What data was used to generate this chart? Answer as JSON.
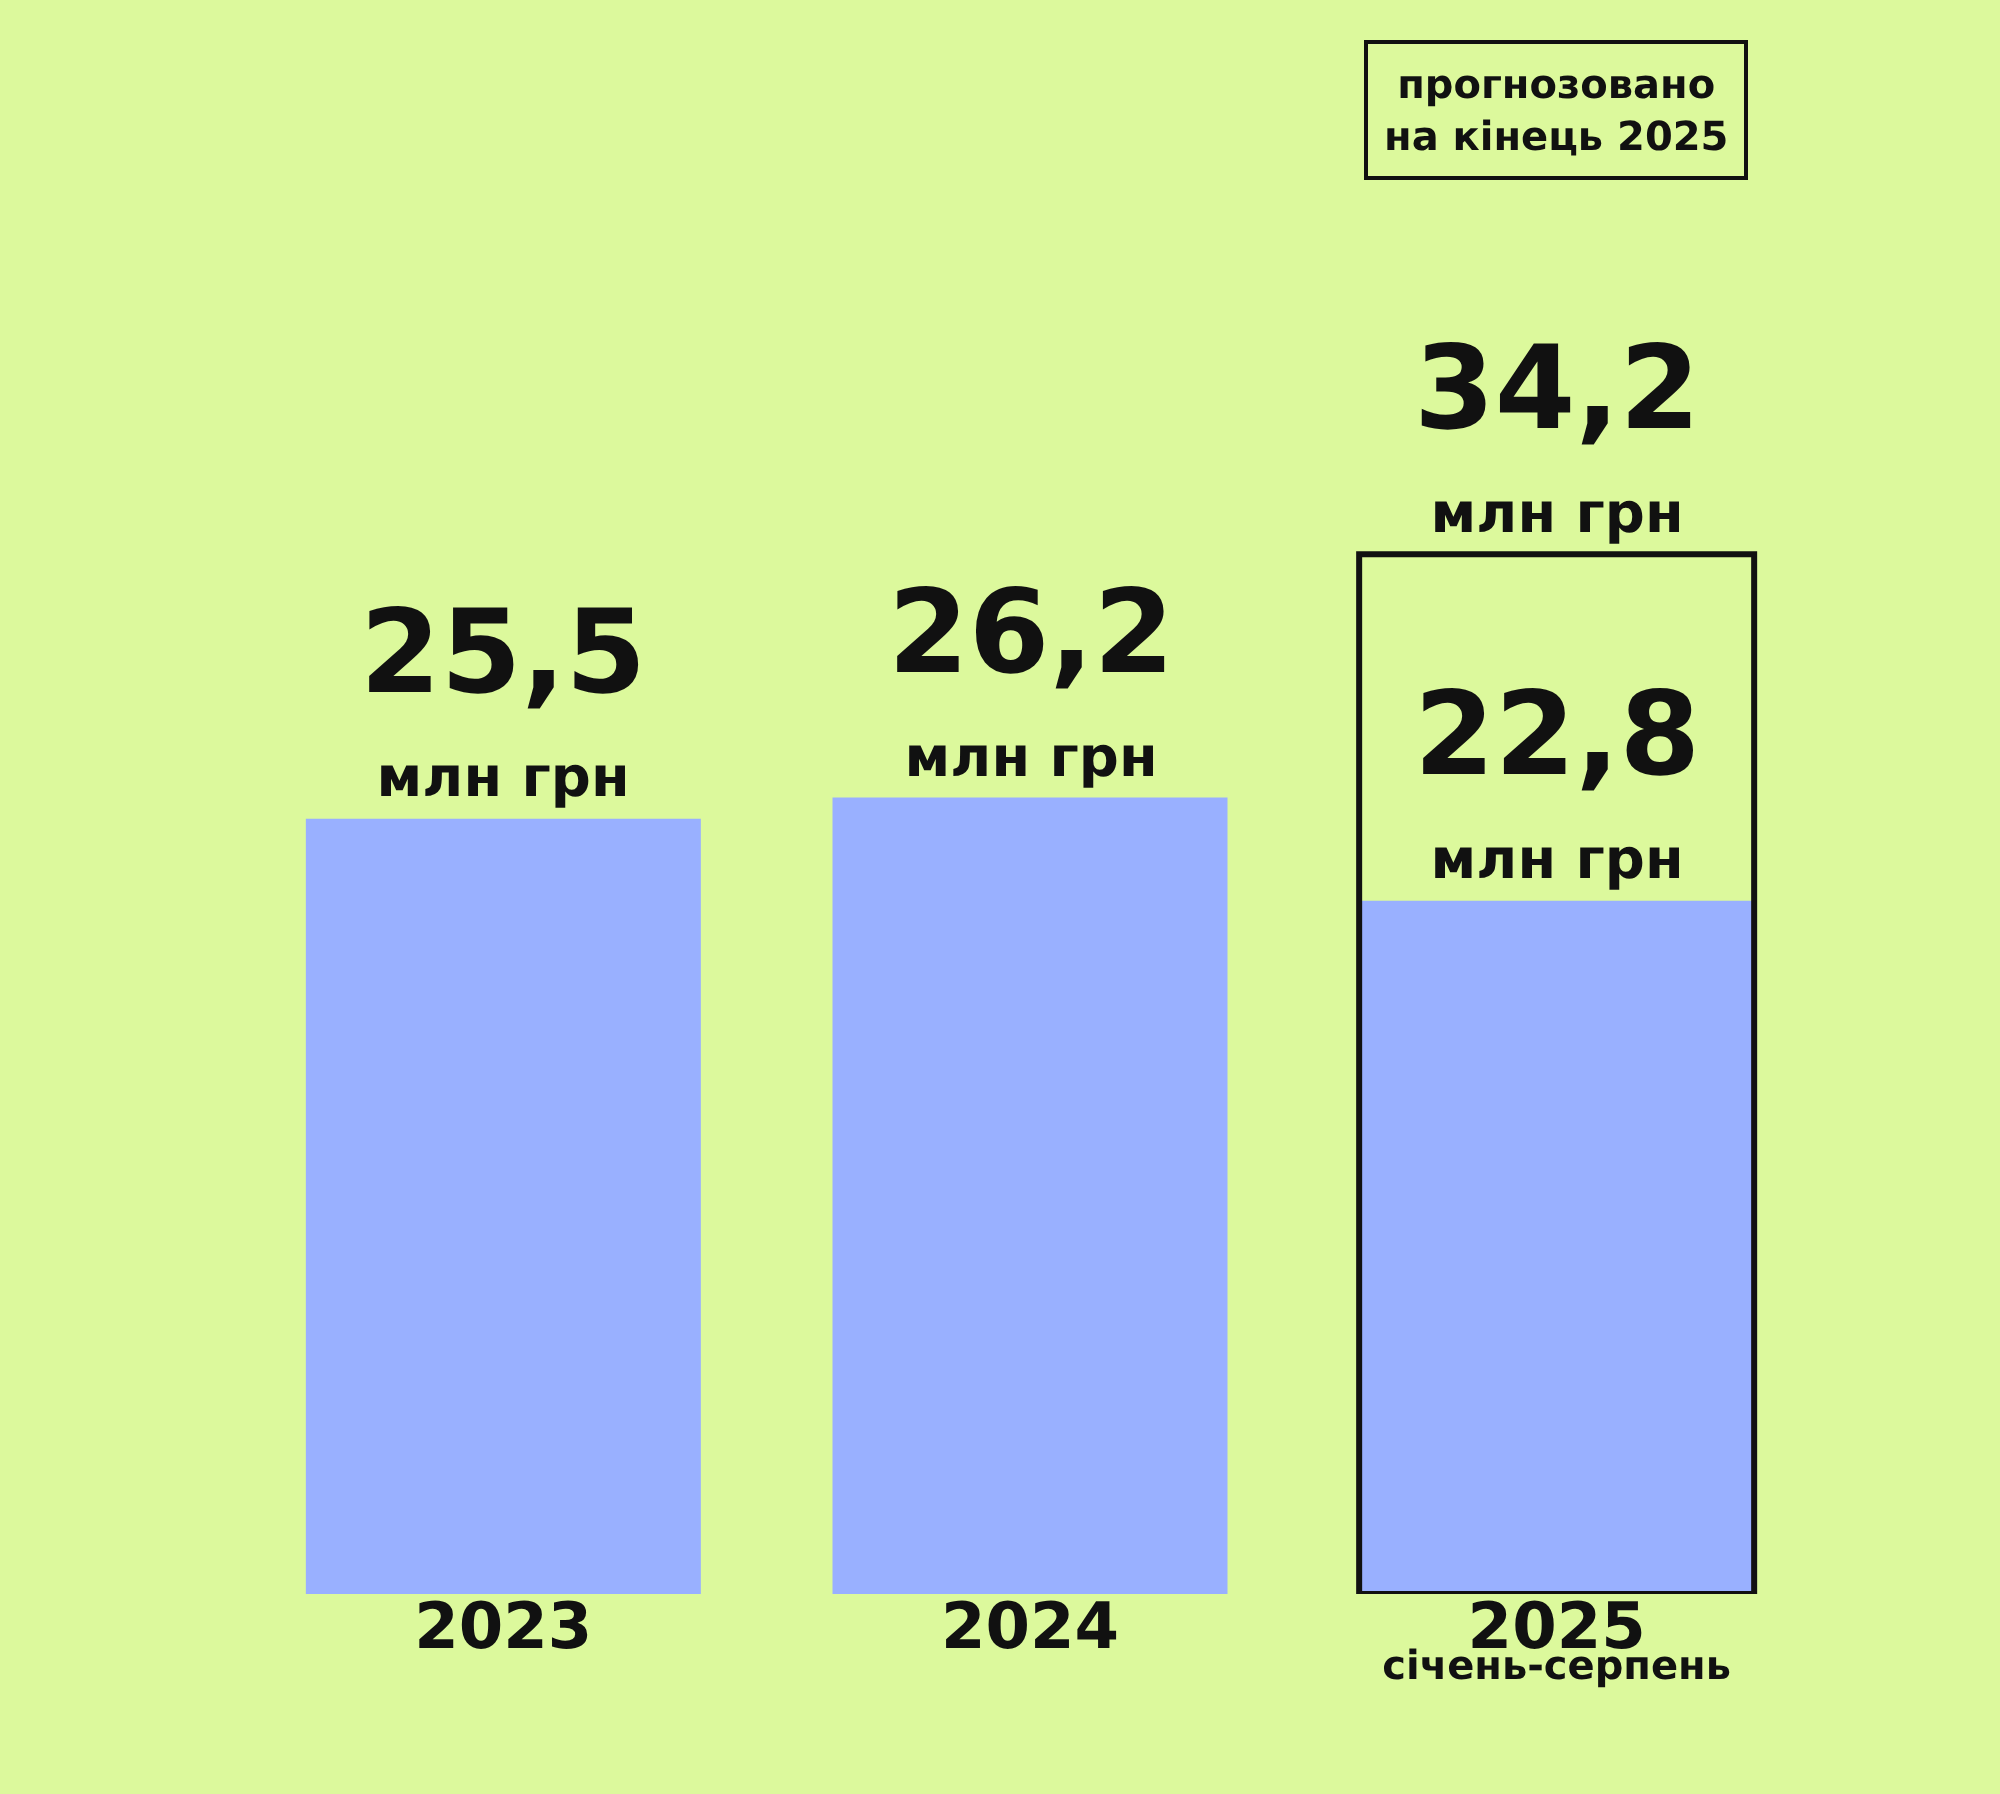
{
  "chart_data": {
    "type": "bar",
    "categories": [
      "2023",
      "2024",
      "2025\nсічень-серпень"
    ],
    "series": [
      {
        "color": "#99b0ff",
        "values": [
          25.5,
          26.2,
          22.8
        ],
        "value_labels": [
          "25,5\nмлн грн",
          "26,2\nмлн грн",
          "22,8\nмлн грн"
        ]
      },
      {
        "color": "#111111",
        "line_style": "dashed",
        "values": [
          null,
          null,
          34.2
        ],
        "value_labels": [
          null,
          null,
          "34,2\nмлн грн"
        ]
      }
    ],
    "annotations": [
      "прогнозовано\nна кінець 2025"
    ],
    "grid": false
  }
}
